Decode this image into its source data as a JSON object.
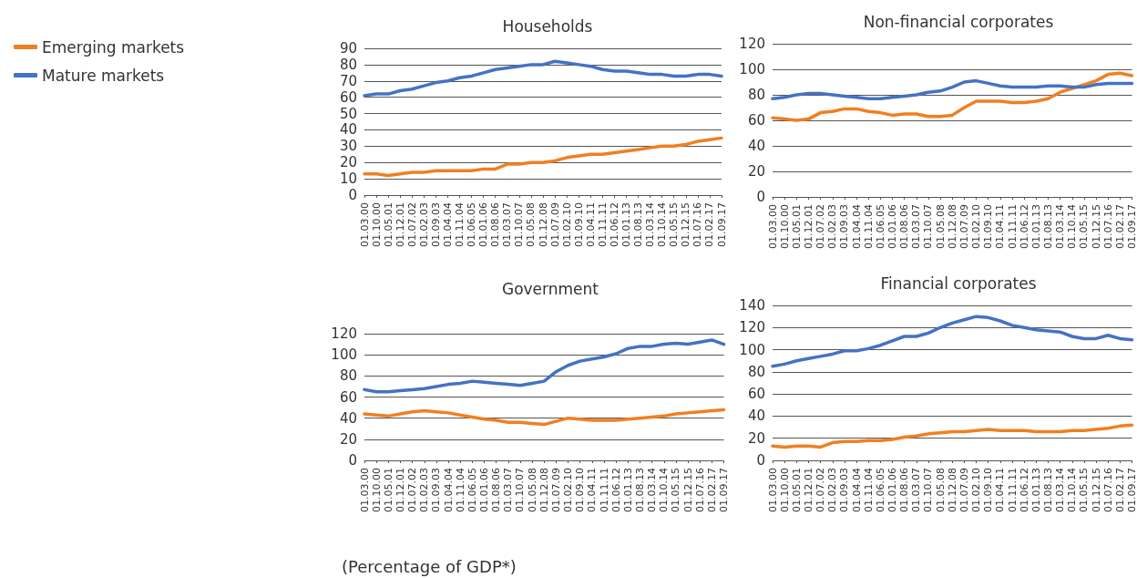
{
  "chart_data": [
    {
      "type": "line",
      "title": "Households",
      "categories": [
        "01.03.00",
        "01.10.00",
        "01.05.01",
        "01.12.01",
        "01.07.02",
        "01.02.03",
        "01.09.03",
        "01.04.04",
        "01.11.04",
        "01.06.05",
        "01.01.06",
        "01.08.06",
        "01.03.07",
        "01.10.07",
        "01.05.08",
        "01.12.08",
        "01.07.09",
        "01.02.10",
        "01.09.10",
        "01.04.11",
        "01.11.11",
        "01.06.12",
        "01.01.13",
        "01.08.13",
        "01.03.14",
        "01.10.14",
        "01.05.15",
        "01.12.15",
        "01.07.16",
        "01.02.17",
        "01.09.17"
      ],
      "series": [
        {
          "name": "Emerging markets",
          "color": "#f07f22",
          "values": [
            13,
            13,
            12,
            13,
            14,
            14,
            15,
            15,
            15,
            15,
            16,
            16,
            19,
            19,
            20,
            20,
            21,
            23,
            24,
            25,
            25,
            26,
            27,
            28,
            29,
            30,
            30,
            31,
            33,
            34,
            35
          ]
        },
        {
          "name": "Mature markets",
          "color": "#4472c4",
          "values": [
            61,
            62,
            62,
            64,
            65,
            67,
            69,
            70,
            72,
            73,
            75,
            77,
            78,
            79,
            80,
            80,
            82,
            81,
            80,
            79,
            77,
            76,
            76,
            75,
            74,
            74,
            73,
            73,
            74,
            74,
            73
          ]
        }
      ],
      "ylim": [
        0,
        90
      ],
      "yticks": [
        0,
        10,
        20,
        30,
        40,
        50,
        60,
        70,
        80,
        90
      ],
      "grid": "y",
      "legend": "left",
      "marker": "none",
      "line_style": "solid"
    },
    {
      "type": "line",
      "title": "Non-financial corporates",
      "categories": [
        "01.03.00",
        "01.10.00",
        "01.05.01",
        "01.12.01",
        "01.07.02",
        "01.02.03",
        "01.09.03",
        "01.04.04",
        "01.11.04",
        "01.06.05",
        "01.01.06",
        "01.08.06",
        "01.03.07",
        "01.10.07",
        "01.05.08",
        "01.12.08",
        "01.07.09",
        "01.02.10",
        "01.09.10",
        "01.04.11",
        "01.11.11",
        "01.06.12",
        "01.01.13",
        "01.08.13",
        "01.03.14",
        "01.10.14",
        "01.05.15",
        "01.12.15",
        "01.07.16",
        "01.02.17",
        "01.09.17"
      ],
      "series": [
        {
          "color": "#f07f22",
          "values": [
            62,
            61,
            60,
            61,
            66,
            67,
            69,
            69,
            67,
            66,
            64,
            65,
            65,
            63,
            63,
            64,
            70,
            75,
            75,
            75,
            74,
            74,
            75,
            77,
            82,
            85,
            88,
            91,
            96,
            97,
            95
          ]
        },
        {
          "color": "#4472c4",
          "values": [
            77,
            78,
            80,
            81,
            81,
            80,
            79,
            78,
            77,
            77,
            78,
            79,
            80,
            82,
            83,
            86,
            90,
            91,
            89,
            87,
            86,
            86,
            86,
            87,
            87,
            86,
            86,
            88,
            89,
            89,
            89
          ]
        }
      ],
      "ylim": [
        0,
        120
      ],
      "yticks": [
        0,
        20,
        40,
        60,
        80,
        100,
        120
      ],
      "grid": "y",
      "marker": "none",
      "line_style": "solid"
    },
    {
      "type": "line",
      "title": "Government",
      "categories": [
        "01.03.00",
        "01.10.00",
        "01.05.01",
        "01.12.01",
        "01.07.02",
        "01.02.03",
        "01.09.03",
        "01.04.04",
        "01.11.04",
        "01.06.05",
        "01.01.06",
        "01.08.06",
        "01.03.07",
        "01.10.07",
        "01.05.08",
        "01.12.08",
        "01.07.09",
        "01.02.10",
        "01.09.10",
        "01.04.11",
        "01.11.11",
        "01.06.12",
        "01.01.13",
        "01.08.13",
        "01.03.14",
        "01.10.14",
        "01.05.15",
        "01.12.15",
        "01.07.16",
        "01.02.17",
        "01.09.17"
      ],
      "series": [
        {
          "color": "#f07f22",
          "values": [
            44,
            43,
            42,
            44,
            46,
            47,
            46,
            45,
            43,
            41,
            39,
            38,
            36,
            36,
            35,
            34,
            37,
            40,
            39,
            38,
            38,
            38,
            39,
            40,
            41,
            42,
            44,
            45,
            46,
            47,
            48
          ]
        },
        {
          "color": "#4472c4",
          "values": [
            67,
            65,
            65,
            66,
            67,
            68,
            70,
            72,
            73,
            75,
            74,
            73,
            72,
            71,
            73,
            75,
            84,
            90,
            94,
            96,
            98,
            101,
            106,
            108,
            108,
            110,
            111,
            110,
            112,
            114,
            110
          ]
        }
      ],
      "ylim": [
        0,
        120
      ],
      "yticks": [
        0,
        20,
        40,
        60,
        80,
        100,
        120
      ],
      "grid": "y",
      "marker": "none",
      "line_style": "solid",
      "annotations": [
        "(Percentage of GDP*)"
      ]
    },
    {
      "type": "line",
      "title": "Financial corporates",
      "categories": [
        "01.03.00",
        "01.10.00",
        "01.05.01",
        "01.12.01",
        "01.07.02",
        "01.02.03",
        "01.09.03",
        "01.04.04",
        "01.11.04",
        "01.06.05",
        "01.01.06",
        "01.08.06",
        "01.03.07",
        "01.10.07",
        "01.05.08",
        "01.12.08",
        "01.07.09",
        "01.02.10",
        "01.09.10",
        "01.04.11",
        "01.11.11",
        "01.06.12",
        "01.01.13",
        "01.08.13",
        "01.03.14",
        "01.10.14",
        "01.05.15",
        "01.12.15",
        "01.07.16",
        "01.02.17",
        "01.09.17"
      ],
      "series": [
        {
          "color": "#f07f22",
          "values": [
            13,
            12,
            13,
            13,
            12,
            16,
            17,
            17,
            18,
            18,
            19,
            21,
            22,
            24,
            25,
            26,
            26,
            27,
            28,
            27,
            27,
            27,
            26,
            26,
            26,
            27,
            27,
            28,
            29,
            31,
            32
          ]
        },
        {
          "color": "#4472c4",
          "values": [
            85,
            87,
            90,
            92,
            94,
            96,
            99,
            99,
            101,
            104,
            108,
            112,
            112,
            115,
            120,
            124,
            127,
            130,
            129,
            126,
            122,
            120,
            118,
            117,
            116,
            112,
            110,
            110,
            113,
            110,
            109
          ]
        }
      ],
      "ylim": [
        0,
        140
      ],
      "yticks": [
        0,
        20,
        40,
        60,
        80,
        100,
        120,
        140
      ],
      "grid": "y",
      "marker": "none",
      "line_style": "solid"
    }
  ]
}
